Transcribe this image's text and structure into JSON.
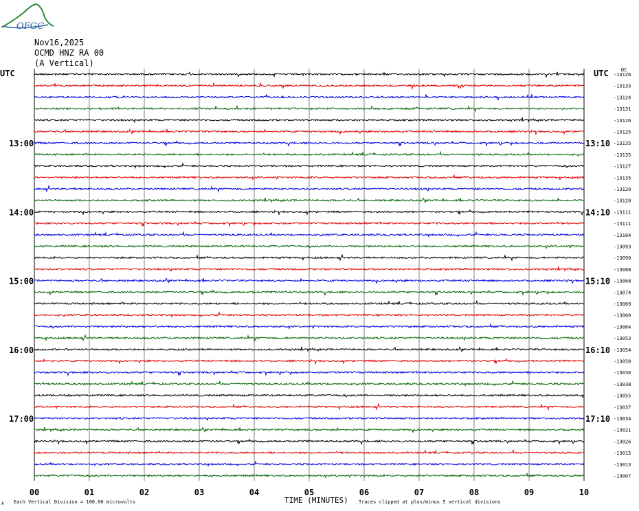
{
  "header": {
    "date": "Nov16,2025",
    "station": "OCMD HNZ RA 00",
    "component": "(A Vertical)"
  },
  "logo": {
    "text": "OFGC",
    "color": "#2f5fa0",
    "accent": "#2e8b3a"
  },
  "colors": {
    "black": "#000000",
    "red": "#e00000",
    "blue": "#0000e0",
    "green": "#006400",
    "grid": "#808080"
  },
  "chart_data": {
    "type": "line",
    "title": "",
    "xlabel": "TIME (MINUTES)",
    "ylabel": "",
    "xlim": [
      0,
      10
    ],
    "x_ticks": [
      "00",
      "01",
      "02",
      "03",
      "04",
      "05",
      "06",
      "07",
      "08",
      "09",
      "10"
    ],
    "left_label_top": "UTC",
    "right_label_top": "UTC",
    "left_time_labels": [
      {
        "row": 6,
        "label": "13:00"
      },
      {
        "row": 12,
        "label": "14:00"
      },
      {
        "row": 18,
        "label": "15:00"
      },
      {
        "row": 24,
        "label": "16:00"
      },
      {
        "row": 30,
        "label": "17:00"
      }
    ],
    "right_time_labels": [
      {
        "row": 6,
        "label": "13:10"
      },
      {
        "row": 12,
        "label": "14:10"
      },
      {
        "row": 18,
        "label": "15:10"
      },
      {
        "row": 24,
        "label": "16:10"
      },
      {
        "row": 30,
        "label": "17:10"
      }
    ],
    "top_right_marker": "DC",
    "trace_offsets": [
      -13126,
      -13133,
      -13124,
      -13131,
      -13126,
      -13125,
      -13135,
      -13135,
      -13127,
      -13135,
      -13120,
      -13120,
      -13111,
      -13111,
      -13104,
      -13093,
      -13090,
      -13088,
      -13068,
      -13074,
      -13069,
      -13060,
      -13064,
      -13053,
      -13054,
      -13050,
      -13036,
      -13038,
      -13055,
      -13037,
      -13034,
      -13021,
      -13026,
      -13015,
      -13013,
      -13007
    ],
    "trace_color_cycle": [
      "black",
      "red",
      "blue",
      "green"
    ],
    "footer_left": "Each Vertical Division =  100.00 microvolts",
    "footer_right": "Traces clipped at plus/minus 5 vertical divisions",
    "footer_mark": "A"
  }
}
